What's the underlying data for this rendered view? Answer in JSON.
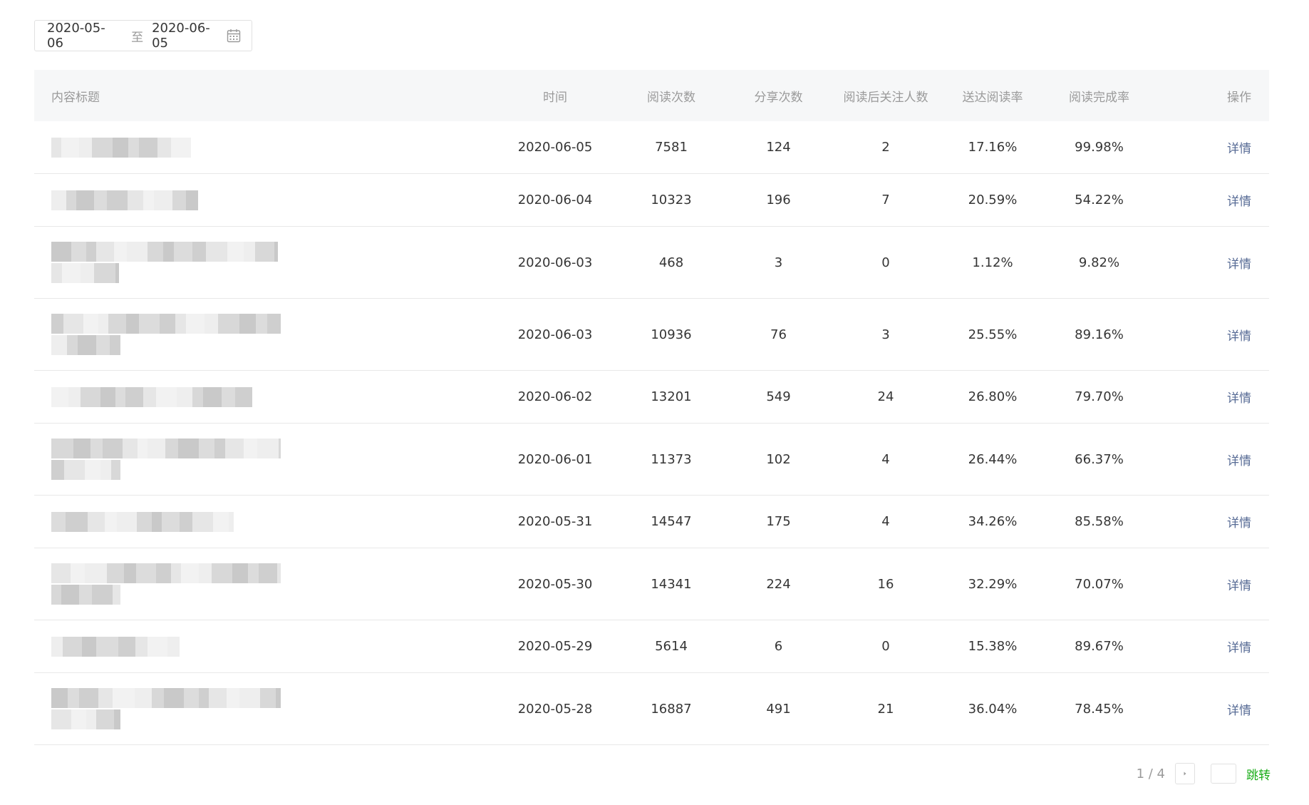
{
  "date_range": {
    "start": "2020-05-06",
    "separator": "至",
    "end": "2020-06-05"
  },
  "table": {
    "headers": {
      "title": "内容标题",
      "time": "时间",
      "reads": "阅读次数",
      "shares": "分享次数",
      "follows": "阅读后关注人数",
      "reach_rate": "送达阅读率",
      "completion_rate": "阅读完成率",
      "action": "操作"
    },
    "rows": [
      {
        "time": "2020-06-05",
        "reads": "7581",
        "shares": "124",
        "follows": "2",
        "reach_rate": "17.16%",
        "completion_rate": "99.98%",
        "action": "详情"
      },
      {
        "time": "2020-06-04",
        "reads": "10323",
        "shares": "196",
        "follows": "7",
        "reach_rate": "20.59%",
        "completion_rate": "54.22%",
        "action": "详情"
      },
      {
        "time": "2020-06-03",
        "reads": "468",
        "shares": "3",
        "follows": "0",
        "reach_rate": "1.12%",
        "completion_rate": "9.82%",
        "action": "详情"
      },
      {
        "time": "2020-06-03",
        "reads": "10936",
        "shares": "76",
        "follows": "3",
        "reach_rate": "25.55%",
        "completion_rate": "89.16%",
        "action": "详情"
      },
      {
        "time": "2020-06-02",
        "reads": "13201",
        "shares": "549",
        "follows": "24",
        "reach_rate": "26.80%",
        "completion_rate": "79.70%",
        "action": "详情"
      },
      {
        "time": "2020-06-01",
        "reads": "11373",
        "shares": "102",
        "follows": "4",
        "reach_rate": "26.44%",
        "completion_rate": "66.37%",
        "action": "详情"
      },
      {
        "time": "2020-05-31",
        "reads": "14547",
        "shares": "175",
        "follows": "4",
        "reach_rate": "34.26%",
        "completion_rate": "85.58%",
        "action": "详情"
      },
      {
        "time": "2020-05-30",
        "reads": "14341",
        "shares": "224",
        "follows": "16",
        "reach_rate": "32.29%",
        "completion_rate": "70.07%",
        "action": "详情"
      },
      {
        "time": "2020-05-29",
        "reads": "5614",
        "shares": "6",
        "follows": "0",
        "reach_rate": "15.38%",
        "completion_rate": "89.67%",
        "action": "详情"
      },
      {
        "time": "2020-05-28",
        "reads": "16887",
        "shares": "491",
        "follows": "21",
        "reach_rate": "36.04%",
        "completion_rate": "78.45%",
        "action": "详情"
      }
    ]
  },
  "pagination": {
    "page_info": "1 / 4",
    "jump_label": "跳转"
  },
  "icons": {
    "calendar": "calendar-icon",
    "next": "chevron-right-icon"
  },
  "colors": {
    "link": "#576b95",
    "jump": "#1aad19",
    "header_bg": "#f6f7f8"
  }
}
